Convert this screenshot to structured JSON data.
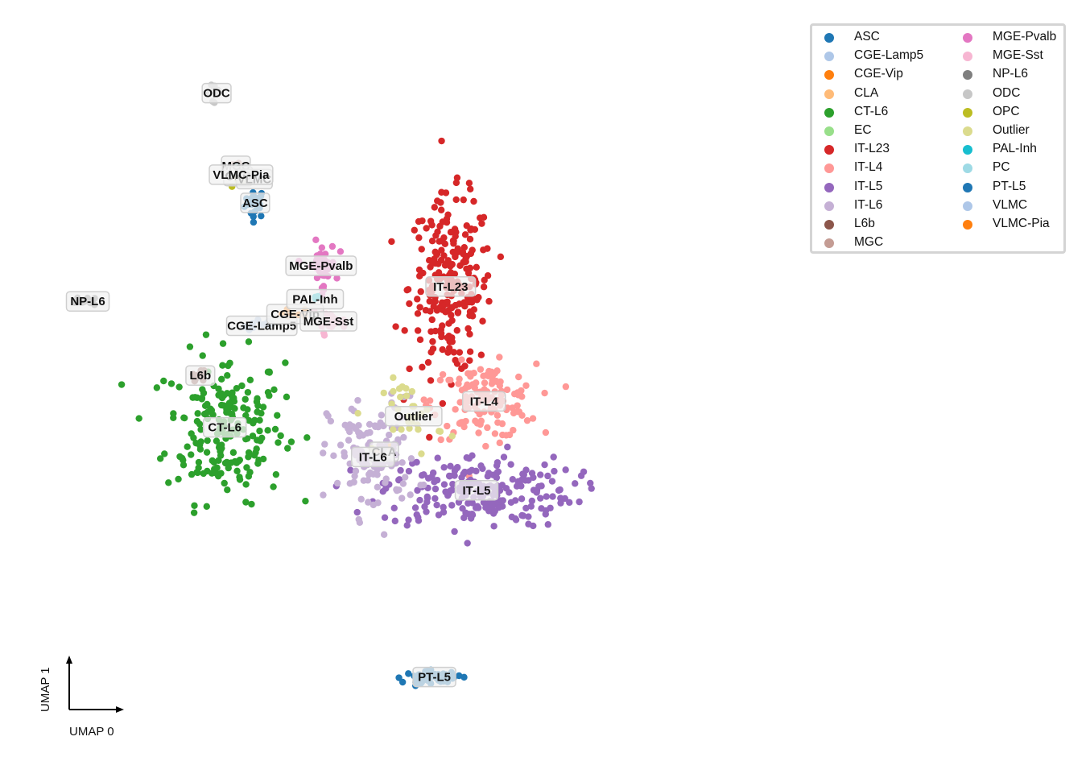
{
  "chart_data": {
    "type": "scatter",
    "title": "",
    "xlabel": "UMAP 0",
    "ylabel": "UMAP 1",
    "xlim": [
      0,
      100
    ],
    "ylim": [
      0,
      100
    ],
    "grid": false,
    "legend_placement": "top-right",
    "series": [
      {
        "name": "ASC",
        "color": "#1f77b4",
        "center": [
          30.1,
          74.8
        ],
        "spread": [
          0.7,
          1.0
        ],
        "n": 25,
        "label": "ASC"
      },
      {
        "name": "CGE-Lamp5",
        "color": "#aec7e8",
        "center": [
          31.0,
          58.2
        ],
        "spread": [
          1.4,
          0.4
        ],
        "n": 10,
        "label": "CGE-Lamp5"
      },
      {
        "name": "CGE-Vip",
        "color": "#ff7f0e",
        "center": [
          35.5,
          59.8
        ],
        "spread": [
          0.9,
          0.4
        ],
        "n": 7,
        "label": "CGE-Vip"
      },
      {
        "name": "CLA",
        "color": "#ffbb78",
        "center": [
          47.5,
          41.2
        ],
        "spread": [
          0.5,
          0.5
        ],
        "n": 6,
        "label": "CLA"
      },
      {
        "name": "CT-L6",
        "color": "#2ca02c",
        "center": [
          26.0,
          44.5
        ],
        "spread": [
          4.0,
          5.0
        ],
        "n": 200,
        "label": "CT-L6"
      },
      {
        "name": "EC",
        "color": "#98df8a",
        "center": [
          27.8,
          79.0
        ],
        "spread": [
          0.3,
          0.3
        ],
        "n": 2,
        "label": ""
      },
      {
        "name": "IT-L23",
        "color": "#d62728",
        "center": [
          56.5,
          63.5
        ],
        "spread": [
          2.8,
          6.0
        ],
        "n": 230,
        "label": "IT-L23"
      },
      {
        "name": "IT-L4",
        "color": "#ff9896",
        "center": [
          61.0,
          48.0
        ],
        "spread": [
          3.5,
          2.5
        ],
        "n": 130,
        "label": "IT-L4"
      },
      {
        "name": "IT-L5",
        "color": "#9467bd",
        "center": [
          60.0,
          36.0
        ],
        "spread": [
          6.5,
          2.5
        ],
        "n": 220,
        "label": "IT-L5"
      },
      {
        "name": "IT-L6",
        "color": "#c5b0d5",
        "center": [
          46.0,
          40.5
        ],
        "spread": [
          3.0,
          4.0
        ],
        "n": 120,
        "label": "IT-L6"
      },
      {
        "name": "L6b",
        "color": "#8c564b",
        "center": [
          22.7,
          51.5
        ],
        "spread": [
          0.5,
          0.4
        ],
        "n": 8,
        "label": "L6b"
      },
      {
        "name": "MGC",
        "color": "#c49c94",
        "center": [
          27.5,
          79.8
        ],
        "spread": [
          0.4,
          0.4
        ],
        "n": 4,
        "label": "MGC"
      },
      {
        "name": "MGE-Pvalb",
        "color": "#e377c2",
        "center": [
          39.0,
          66.3
        ],
        "spread": [
          1.0,
          1.6
        ],
        "n": 40,
        "label": "MGE-Pvalb"
      },
      {
        "name": "MGE-Sst",
        "color": "#f7b6d2",
        "center": [
          40.0,
          58.8
        ],
        "spread": [
          1.2,
          0.6
        ],
        "n": 25,
        "label": "MGE-Sst"
      },
      {
        "name": "NP-L6",
        "color": "#7f7f7f",
        "center": [
          7.5,
          61.5
        ],
        "spread": [
          0.8,
          0.3
        ],
        "n": 14,
        "label": "NP-L6"
      },
      {
        "name": "ODC",
        "color": "#c7c7c7",
        "center": [
          24.9,
          89.6
        ],
        "spread": [
          0.6,
          0.8
        ],
        "n": 12,
        "label": "ODC"
      },
      {
        "name": "OPC",
        "color": "#bcbd22",
        "center": [
          27.8,
          78.4
        ],
        "spread": [
          0.6,
          0.5
        ],
        "n": 6,
        "label": "OPC"
      },
      {
        "name": "Outlier",
        "color": "#dbdb8d",
        "center": [
          51.5,
          46.0
        ],
        "spread": [
          2.0,
          2.5
        ],
        "n": 30,
        "label": "Outlier"
      },
      {
        "name": "PAL-Inh",
        "color": "#17becf",
        "center": [
          38.2,
          61.8
        ],
        "spread": [
          0.3,
          0.3
        ],
        "n": 3,
        "label": "PAL-Inh"
      },
      {
        "name": "PC",
        "color": "#9edae5",
        "center": [
          28.2,
          79.5
        ],
        "spread": [
          0.3,
          0.3
        ],
        "n": 2,
        "label": ""
      },
      {
        "name": "PT-L5",
        "color": "#1f77b4",
        "center": [
          54.3,
          10.8
        ],
        "spread": [
          2.0,
          0.4
        ],
        "n": 60,
        "label": "PT-L5"
      },
      {
        "name": "VLMC",
        "color": "#aec7e8",
        "center": [
          30.0,
          78.0
        ],
        "spread": [
          0.6,
          0.4
        ],
        "n": 6,
        "label": "VLMC"
      },
      {
        "name": "VLMC-Pia",
        "color": "#ff7f0e",
        "center": [
          28.2,
          78.6
        ],
        "spread": [
          0.4,
          0.3
        ],
        "n": 3,
        "label": "VLMC-Pia"
      }
    ]
  },
  "legend": {
    "columns": [
      [
        {
          "label": "ASC",
          "color": "#1f77b4"
        },
        {
          "label": "CGE-Lamp5",
          "color": "#aec7e8"
        },
        {
          "label": "CGE-Vip",
          "color": "#ff7f0e"
        },
        {
          "label": "CLA",
          "color": "#ffbb78"
        },
        {
          "label": "CT-L6",
          "color": "#2ca02c"
        },
        {
          "label": "EC",
          "color": "#98df8a"
        },
        {
          "label": "IT-L23",
          "color": "#d62728"
        },
        {
          "label": "IT-L4",
          "color": "#ff9896"
        },
        {
          "label": "IT-L5",
          "color": "#9467bd"
        },
        {
          "label": "IT-L6",
          "color": "#c5b0d5"
        },
        {
          "label": "L6b",
          "color": "#8c564b"
        },
        {
          "label": "MGC",
          "color": "#c49c94"
        }
      ],
      [
        {
          "label": "MGE-Pvalb",
          "color": "#e377c2"
        },
        {
          "label": "MGE-Sst",
          "color": "#f7b6d2"
        },
        {
          "label": "NP-L6",
          "color": "#7f7f7f"
        },
        {
          "label": "ODC",
          "color": "#c7c7c7"
        },
        {
          "label": "OPC",
          "color": "#bcbd22"
        },
        {
          "label": "Outlier",
          "color": "#dbdb8d"
        },
        {
          "label": "PAL-Inh",
          "color": "#17becf"
        },
        {
          "label": "PC",
          "color": "#9edae5"
        },
        {
          "label": "PT-L5",
          "color": "#1f77b4"
        },
        {
          "label": "VLMC",
          "color": "#aec7e8"
        },
        {
          "label": "VLMC-Pia",
          "color": "#ff7f0e"
        }
      ]
    ]
  }
}
